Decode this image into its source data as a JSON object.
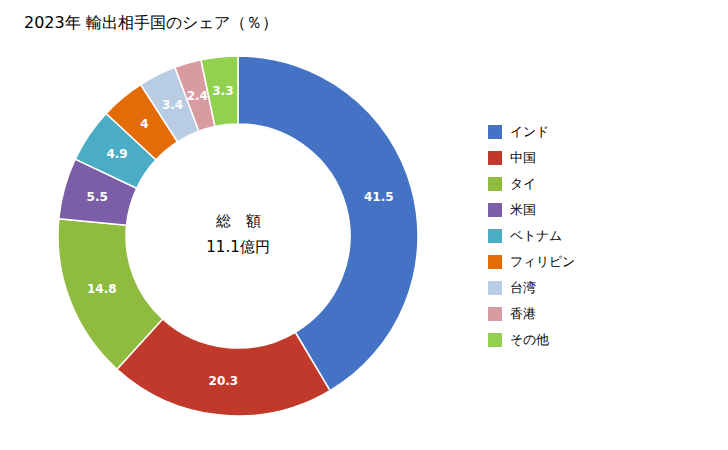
{
  "chart_data": {
    "type": "pie",
    "title": "2023年 輸出相手国のシェア（％）",
    "annotations": [
      "総　額",
      "11.1億円"
    ],
    "categories": [
      "インド",
      "中国",
      "タイ",
      "米国",
      "ベトナム",
      "フィリピン",
      "台湾",
      "香港",
      "その他"
    ],
    "values": [
      41.5,
      20.3,
      14.8,
      5.5,
      4.9,
      4.0,
      3.4,
      2.4,
      3.3
    ],
    "colors": [
      "#4472C4",
      "#C0392B",
      "#8FBC3F",
      "#7B5EA7",
      "#4BACC6",
      "#E36C09",
      "#B8CCE4",
      "#D99BA2",
      "#92D050"
    ],
    "data_labels": true,
    "legend": "right"
  }
}
